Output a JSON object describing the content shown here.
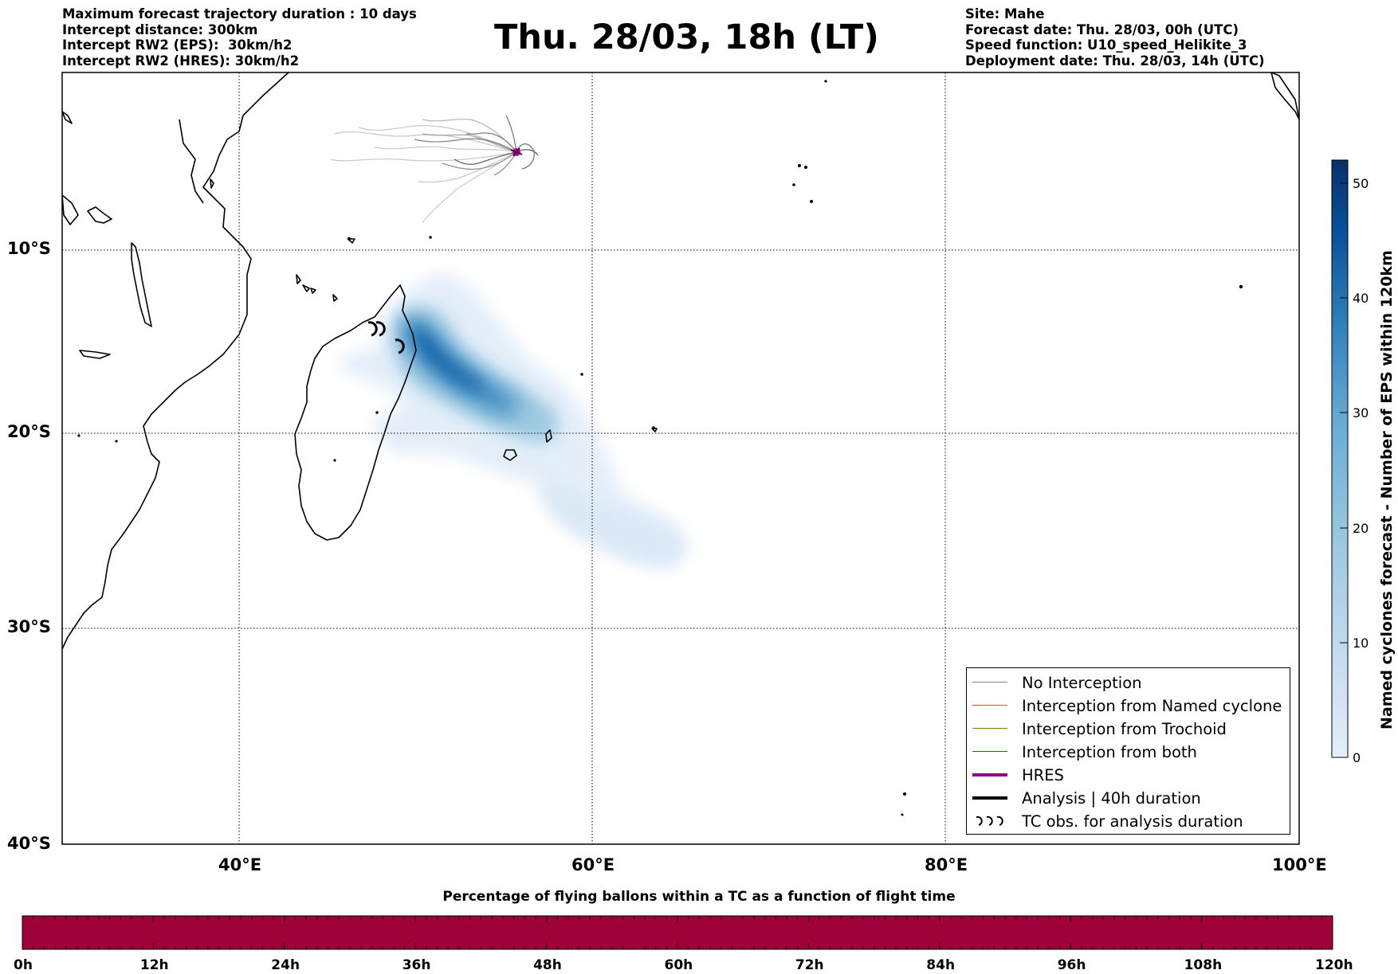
{
  "header": {
    "left": [
      "Maximum forecast trajectory duration : 10 days",
      "Intercept distance: 300km",
      "Intercept RW2 (EPS):  30km/h2",
      "Intercept RW2 (HRES): 30km/h2"
    ],
    "title": "Thu. 28/03, 18h (LT)",
    "right": [
      "Site: Mahe",
      "Forecast date: Thu. 28/03, 00h (UTC)",
      "Speed function: U10_speed_Helikite_3",
      "Deployment date: Thu. 28/03, 14h (UTC)"
    ]
  },
  "map": {
    "lat_labels": [
      "10°S",
      "20°S",
      "30°S",
      "40°S"
    ],
    "lon_labels": [
      "40°E",
      "60°E",
      "80°E",
      "100°E"
    ],
    "extent": {
      "lon_min": 30,
      "lon_max": 100,
      "lat_min": -40,
      "lat_max": 0
    },
    "site_marker_color": "#b000a0"
  },
  "legend": {
    "items": [
      {
        "label": "No Interception",
        "color": "#808080",
        "style": "thin-line"
      },
      {
        "label": "Interception from Named cyclone",
        "color": "#ff4500",
        "style": "thin-line"
      },
      {
        "label": "Interception from Trochoid",
        "color": "#808000",
        "style": "thin-line"
      },
      {
        "label": "Interception from both",
        "color": "#008000",
        "style": "thin-line"
      },
      {
        "label": "HRES",
        "color": "#8b008b",
        "style": "thick-line"
      },
      {
        "label": "Analysis | 40h duration",
        "color": "#000000",
        "style": "thick-line"
      },
      {
        "label": "TC obs. for analysis duration",
        "color": "#000000",
        "style": "cyclone-symbols"
      }
    ]
  },
  "colorbar": {
    "label": "Named cyclones forecast - Number of EPS within 120km",
    "ticks": [
      "0",
      "10",
      "20",
      "30",
      "40",
      "50"
    ],
    "min": 0,
    "max": 52,
    "colors": [
      "#e3eef9",
      "#c6dbef",
      "#9ecae1",
      "#6baed6",
      "#3182bd",
      "#08519c",
      "#08306b"
    ]
  },
  "flight_bar": {
    "title": "Percentage of flying ballons within a TC as a function of flight time",
    "ticks": [
      "0h",
      "12h",
      "24h",
      "36h",
      "48h",
      "60h",
      "72h",
      "84h",
      "96h",
      "108h",
      "120h"
    ],
    "color": "#9e003a"
  }
}
